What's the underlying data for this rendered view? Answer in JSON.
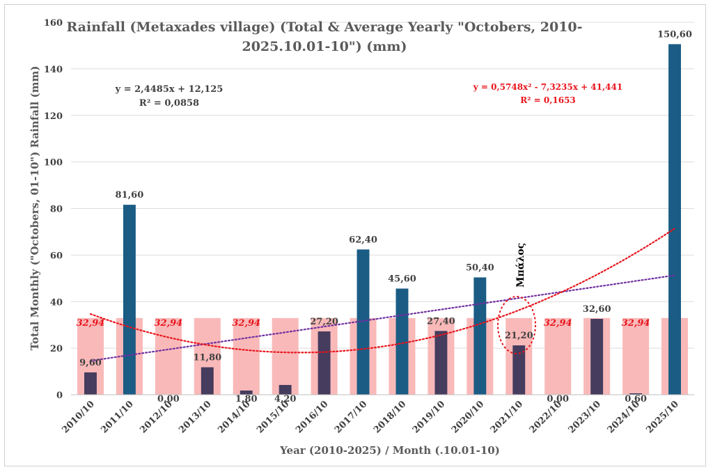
{
  "chart_data": {
    "type": "bar",
    "title": [
      "Rainfall (Metaxades village) (Total & Average Yearly \"Octobers, 2010-",
      "2025.10.01-10\") (mm)"
    ],
    "xlabel": "Year (2010-2025) / Month (.10.01-10)",
    "ylabel": "Total Monthly (\"Octobers, 01-10\") Rainfall (mm)",
    "ylim": [
      0,
      160
    ],
    "ytick_step": 20,
    "categories": [
      "2010/10",
      "2011/10",
      "2012/10",
      "2013/10",
      "2014/10",
      "2015/10",
      "2016/10",
      "2017/10",
      "2018/10",
      "2019/10",
      "2020/10",
      "2021/10",
      "2022/10",
      "2023/10",
      "2024/10",
      "2025/10"
    ],
    "series": [
      {
        "name": "Total",
        "values": [
          9.6,
          81.6,
          0.0,
          11.8,
          1.8,
          4.2,
          27.2,
          62.4,
          45.6,
          27.4,
          50.4,
          21.2,
          0.0,
          32.6,
          0.6,
          150.6
        ],
        "labels": [
          "9,60",
          "81,60",
          "0,00",
          "11,80",
          "1,80",
          "4,20",
          "27,20",
          "62,40",
          "45,60",
          "27,40",
          "50,40",
          "21,20",
          "0,00",
          "32,60",
          "0,60",
          "150,60"
        ],
        "color_above_avg": "#1a5c84",
        "color_below_avg": "#453c5e"
      },
      {
        "name": "Average",
        "value": 32.94,
        "label": "32,94",
        "labeled_indices": [
          0,
          2,
          4,
          12,
          14
        ],
        "color": "#f9b9b9"
      }
    ],
    "trendlines": [
      {
        "type": "linear",
        "equation": "y = 2,4485x + 12,125",
        "r2": "R² = 0,0858",
        "coefficients": [
          12.125,
          2.4485
        ],
        "color": "#7030a0"
      },
      {
        "type": "polynomial",
        "equation": "y = 0,5748x² - 7,3235x + 41,441",
        "r2": "R² = 0,1653",
        "coefficients": [
          41.441,
          -7.3235,
          0.5748
        ],
        "color": "#e8141c"
      }
    ],
    "annotations": [
      {
        "text": "Μπάλος",
        "category": "2021/10"
      }
    ]
  }
}
